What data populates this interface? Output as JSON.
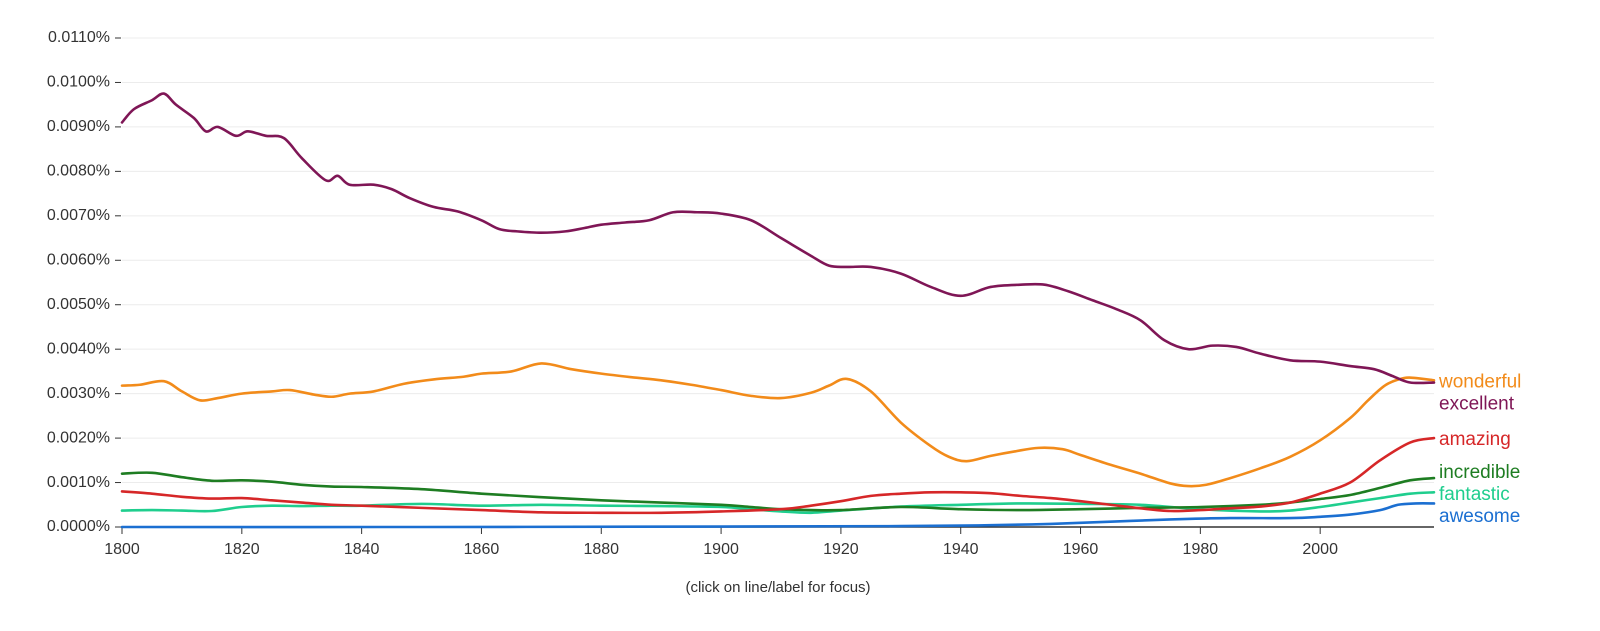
{
  "chart_data": {
    "type": "line",
    "title": "",
    "xlabel": "",
    "ylabel": "",
    "xlim": [
      1800,
      2019
    ],
    "ylim": [
      0,
      0.011
    ],
    "grid": true,
    "x_ticks": [
      1800,
      1820,
      1840,
      1860,
      1880,
      1900,
      1920,
      1940,
      1960,
      1980,
      2000
    ],
    "x_tick_labels": [
      "1800",
      "1820",
      "1840",
      "1860",
      "1880",
      "1900",
      "1920",
      "1940",
      "1960",
      "1980",
      "2000"
    ],
    "y_ticks": [
      0,
      0.001,
      0.002,
      0.003,
      0.004,
      0.005,
      0.006,
      0.007,
      0.008,
      0.009,
      0.01,
      0.011
    ],
    "y_tick_labels": [
      "0.0000%",
      "0.0010%",
      "0.0020%",
      "0.0030%",
      "0.0040%",
      "0.0050%",
      "0.0060%",
      "0.0070%",
      "0.0080%",
      "0.0090%",
      "0.0100%",
      "0.0110%"
    ],
    "legend_position": "right-end-of-lines",
    "series": [
      {
        "name": "wonderful",
        "color": "#f28b1a",
        "x": [
          1800,
          1803,
          1807,
          1810,
          1813,
          1816,
          1820,
          1825,
          1828,
          1832,
          1835,
          1838,
          1842,
          1847,
          1852,
          1857,
          1860,
          1865,
          1870,
          1875,
          1880,
          1885,
          1890,
          1895,
          1900,
          1905,
          1910,
          1915,
          1918,
          1921,
          1925,
          1930,
          1935,
          1938,
          1941,
          1945,
          1949,
          1953,
          1957,
          1960,
          1965,
          1970,
          1975,
          1978,
          1981,
          1985,
          1990,
          1995,
          2000,
          2005,
          2008,
          2011,
          2014,
          2016,
          2019
        ],
        "values": [
          0.00318,
          0.0032,
          0.00328,
          0.00305,
          0.00285,
          0.0029,
          0.003,
          0.00305,
          0.00308,
          0.00298,
          0.00293,
          0.003,
          0.00305,
          0.00322,
          0.00332,
          0.00338,
          0.00345,
          0.0035,
          0.00368,
          0.00355,
          0.00345,
          0.00337,
          0.0033,
          0.0032,
          0.00308,
          0.00295,
          0.0029,
          0.00302,
          0.00318,
          0.00333,
          0.00305,
          0.00235,
          0.00182,
          0.00158,
          0.00148,
          0.0016,
          0.0017,
          0.00178,
          0.00175,
          0.00162,
          0.0014,
          0.0012,
          0.00098,
          0.00092,
          0.00095,
          0.0011,
          0.00132,
          0.00158,
          0.00195,
          0.00245,
          0.00285,
          0.0032,
          0.00335,
          0.00335,
          0.0033
        ]
      },
      {
        "name": "excellent",
        "color": "#7f1656",
        "x": [
          1800,
          1802,
          1805,
          1807,
          1809,
          1812,
          1814,
          1816,
          1819,
          1821,
          1824,
          1827,
          1830,
          1834,
          1836,
          1838,
          1842,
          1845,
          1848,
          1852,
          1856,
          1860,
          1863,
          1866,
          1870,
          1874,
          1877,
          1880,
          1884,
          1888,
          1892,
          1896,
          1900,
          1905,
          1910,
          1915,
          1918,
          1921,
          1925,
          1930,
          1935,
          1940,
          1945,
          1950,
          1954,
          1958,
          1962,
          1966,
          1970,
          1974,
          1978,
          1982,
          1986,
          1990,
          1995,
          2000,
          2005,
          2009,
          2012,
          2015,
          2019
        ],
        "values": [
          0.0091,
          0.0094,
          0.0096,
          0.00975,
          0.0095,
          0.0092,
          0.0089,
          0.009,
          0.0088,
          0.0089,
          0.0088,
          0.00875,
          0.0083,
          0.0078,
          0.0079,
          0.0077,
          0.0077,
          0.0076,
          0.0074,
          0.0072,
          0.0071,
          0.0069,
          0.0067,
          0.00665,
          0.00662,
          0.00665,
          0.00672,
          0.0068,
          0.00685,
          0.0069,
          0.00708,
          0.00708,
          0.00705,
          0.0069,
          0.0065,
          0.0061,
          0.00588,
          0.00585,
          0.00585,
          0.0057,
          0.0054,
          0.0052,
          0.0054,
          0.00545,
          0.00545,
          0.0053,
          0.0051,
          0.0049,
          0.00465,
          0.0042,
          0.004,
          0.00408,
          0.00405,
          0.0039,
          0.00375,
          0.00372,
          0.00362,
          0.00355,
          0.0034,
          0.00325,
          0.00325
        ]
      },
      {
        "name": "amazing",
        "color": "#d62728",
        "x": [
          1800,
          1805,
          1810,
          1815,
          1820,
          1825,
          1830,
          1835,
          1840,
          1850,
          1860,
          1870,
          1880,
          1890,
          1900,
          1910,
          1915,
          1920,
          1925,
          1930,
          1935,
          1940,
          1945,
          1950,
          1955,
          1960,
          1965,
          1970,
          1975,
          1980,
          1985,
          1990,
          1995,
          2000,
          2005,
          2010,
          2015,
          2019
        ],
        "values": [
          0.0008,
          0.00075,
          0.00068,
          0.00064,
          0.00065,
          0.0006,
          0.00055,
          0.0005,
          0.00048,
          0.00043,
          0.00038,
          0.00033,
          0.00032,
          0.00032,
          0.00035,
          0.0004,
          0.00048,
          0.00058,
          0.0007,
          0.00075,
          0.00078,
          0.00078,
          0.00076,
          0.0007,
          0.00065,
          0.00058,
          0.0005,
          0.00042,
          0.00036,
          0.00038,
          0.00042,
          0.00046,
          0.00055,
          0.00075,
          0.001,
          0.0015,
          0.0019,
          0.002
        ]
      },
      {
        "name": "incredible",
        "color": "#1e7d22",
        "x": [
          1800,
          1805,
          1810,
          1815,
          1820,
          1825,
          1830,
          1835,
          1840,
          1850,
          1860,
          1870,
          1880,
          1890,
          1900,
          1905,
          1910,
          1915,
          1920,
          1930,
          1940,
          1950,
          1960,
          1970,
          1980,
          1990,
          1995,
          2000,
          2005,
          2010,
          2015,
          2019
        ],
        "values": [
          0.0012,
          0.00122,
          0.00112,
          0.00104,
          0.00105,
          0.00102,
          0.00095,
          0.00091,
          0.0009,
          0.00085,
          0.00075,
          0.00067,
          0.0006,
          0.00055,
          0.0005,
          0.00045,
          0.0004,
          0.00038,
          0.00038,
          0.00045,
          0.0004,
          0.00038,
          0.0004,
          0.00043,
          0.00045,
          0.0005,
          0.00055,
          0.00063,
          0.00072,
          0.00088,
          0.00105,
          0.0011
        ]
      },
      {
        "name": "fantastic",
        "color": "#1fce8e",
        "x": [
          1800,
          1805,
          1810,
          1815,
          1820,
          1825,
          1830,
          1835,
          1840,
          1850,
          1860,
          1870,
          1880,
          1890,
          1900,
          1905,
          1910,
          1915,
          1920,
          1930,
          1940,
          1950,
          1960,
          1970,
          1980,
          1990,
          1995,
          2000,
          2005,
          2010,
          2015,
          2019
        ],
        "values": [
          0.00037,
          0.00038,
          0.00037,
          0.00036,
          0.00045,
          0.00048,
          0.00047,
          0.00048,
          0.00048,
          0.00052,
          0.00048,
          0.0005,
          0.00048,
          0.00047,
          0.00045,
          0.0004,
          0.00035,
          0.00032,
          0.00037,
          0.00046,
          0.0005,
          0.00053,
          0.00052,
          0.0005,
          0.0004,
          0.00035,
          0.00037,
          0.00045,
          0.00055,
          0.00065,
          0.00075,
          0.00078
        ]
      },
      {
        "name": "awesome",
        "color": "#1b6fd1",
        "x": [
          1800,
          1850,
          1900,
          1930,
          1945,
          1955,
          1965,
          1975,
          1985,
          1995,
          2000,
          2005,
          2010,
          2013,
          2016,
          2019
        ],
        "values": [
          0.0,
          0.0,
          1e-05,
          2e-05,
          4e-05,
          7e-05,
          0.00012,
          0.00017,
          0.0002,
          0.0002,
          0.00023,
          0.00028,
          0.00038,
          0.0005,
          0.00053,
          0.00053
        ]
      }
    ],
    "footnote": "(click on line/label for focus)"
  }
}
